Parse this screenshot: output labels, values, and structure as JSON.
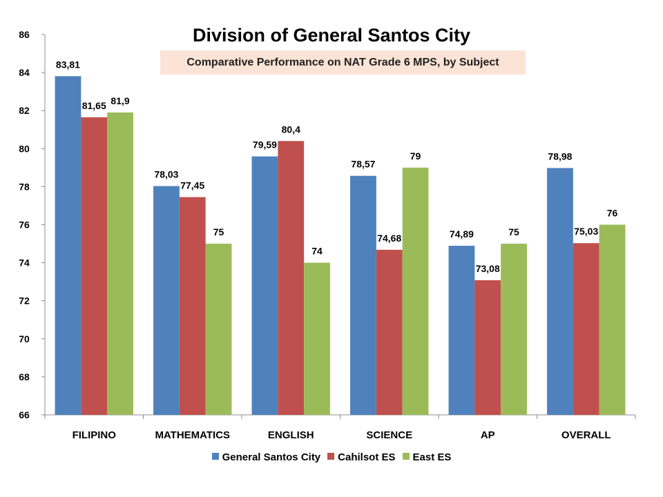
{
  "chart_data": {
    "type": "bar",
    "title": "Division of General Santos City",
    "subtitle": "Comparative Performance on NAT Grade 6 MPS, by  Subject",
    "categories": [
      "FILIPINO",
      "MATHEMATICS",
      "ENGLISH",
      "SCIENCE",
      "AP",
      "OVERALL"
    ],
    "series": [
      {
        "name": "General Santos City",
        "color": "#4f81bd",
        "values": [
          83.81,
          78.03,
          79.59,
          78.57,
          74.89,
          78.98
        ],
        "labels": [
          "83,81",
          "78,03",
          "79,59",
          "78,57",
          "74,89",
          "78,98"
        ]
      },
      {
        "name": "Cahilsot ES",
        "color": "#c0504d",
        "values": [
          81.65,
          77.45,
          80.4,
          74.68,
          73.08,
          75.03
        ],
        "labels": [
          "81,65",
          "77,45",
          "80,4",
          "74,68",
          "73,08",
          "75,03"
        ]
      },
      {
        "name": "East ES",
        "color": "#9bbb59",
        "values": [
          81.9,
          75,
          74,
          79,
          75,
          76
        ],
        "labels": [
          "81,9",
          "75",
          "74",
          "79",
          "75",
          "76"
        ]
      }
    ],
    "ylim": [
      66,
      86
    ],
    "yticks": [
      "66",
      "68",
      "70",
      "72",
      "74",
      "76",
      "78",
      "80",
      "82",
      "84",
      "86"
    ],
    "legend_position": "bottom",
    "grid": false
  }
}
